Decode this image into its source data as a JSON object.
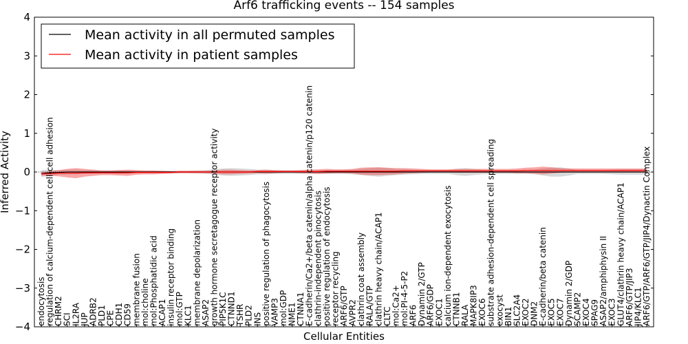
{
  "chart_data": {
    "type": "line",
    "title": "Arf6 trafficking events -- 154 samples",
    "xlabel": "Cellular Entities",
    "ylabel": "Inferred Activity",
    "ylim": [
      -4,
      4
    ],
    "yticks": [
      "4",
      "3",
      "2",
      "1",
      "0",
      "−1",
      "−2",
      "−3",
      "−4"
    ],
    "ytick_values": [
      4,
      3,
      2,
      1,
      0,
      -1,
      -2,
      -3,
      -4
    ],
    "legend_position": "top-left",
    "categories": [
      "endocytosis",
      "regulation of calcium-dependent cell-cell adhesion",
      "CHRM2",
      "SCI",
      "IL2RA",
      "JUP",
      "ADRB2",
      "PLD1",
      "CPE",
      "CDH1",
      "CD59",
      "membrane fusion",
      "mol:choline",
      "mol:Phosphatidic acid",
      "ACAP1",
      "insulin receptor binding",
      "mol:GTP",
      "KLC1",
      "membrane depolarization",
      "ASAP2",
      "growth hormone secretagogue receptor activity",
      "PIP5K1C",
      "CTNND1",
      "TSHR",
      "PLD2",
      "INS",
      "positive regulation of phagocytosis",
      "VAMP3",
      "mol:GDP",
      "NME1",
      "CTNNA1",
      "E-cadherin/Ca2+/beta catenin/alpha catenin/p120 catenin",
      "clathrin-independent pinocytosis",
      "positive regulation of endocytosis",
      "receptor recycling",
      "ARF6/GTP",
      "AVPR2",
      "clathrin coat assembly",
      "RALA/GTP",
      "clathrin heavy chain/ACAP1",
      "CLTC",
      "mol:Ca2+",
      "mol:PI-4-5-P2",
      "ARF6",
      "Dynamin 2/GTP",
      "ARF6/GDP",
      "EXOC1",
      "calcium ion-dependent exocytosis",
      "CTNNB1",
      "RALA",
      "MAPK8IP3",
      "EXOC6",
      "substrate adhesion-dependent cell spreading",
      "exocyst",
      "BIN1",
      "SLC2A4",
      "EXOC2",
      "DNM2",
      "E-cadherin/beta catenin",
      "EXOC5",
      "EXOC7",
      "Dynamin 2/GDP",
      "SCAMP2",
      "EXOC4",
      "SPAG9",
      "ASAP2/amphiphysin II",
      "EXOC3",
      "GLUT4/clathrin heavy chain/ACAP1",
      "ARF6/GTP/JIP3",
      "JIP4/KLC1",
      "ARF6/GTP/ARF6/GTP/JIP4/Dynactin Complex"
    ],
    "series": [
      {
        "name": "Mean activity in all permuted samples",
        "color": "#000000",
        "values": [
          -0.04,
          -0.02,
          -0.01,
          0,
          0,
          0,
          0,
          0,
          0,
          0,
          0,
          0,
          0,
          0,
          0,
          0,
          0,
          0,
          0,
          0,
          0,
          0,
          0,
          0,
          0,
          0,
          0,
          0,
          0,
          0,
          0,
          0,
          0,
          0,
          0,
          0,
          0,
          0,
          0,
          0,
          0,
          0,
          0,
          0,
          0,
          0,
          0,
          0,
          0,
          0,
          0,
          0,
          0,
          0,
          0,
          0,
          0,
          0,
          0,
          0,
          0,
          0,
          0,
          0,
          0,
          0,
          0,
          0,
          0,
          0,
          0
        ],
        "band": [
          0.09,
          0.08,
          0.06,
          0.06,
          0.06,
          0.05,
          0.05,
          0.04,
          0.04,
          0.05,
          0.04,
          0.03,
          0.03,
          0.03,
          0.03,
          0.03,
          0.03,
          0.03,
          0.04,
          0.05,
          0.07,
          0.09,
          0.1,
          0.09,
          0.08,
          0.06,
          0.06,
          0.05,
          0.05,
          0.05,
          0.05,
          0.05,
          0.05,
          0.05,
          0.05,
          0.05,
          0.06,
          0.08,
          0.1,
          0.12,
          0.1,
          0.08,
          0.07,
          0.06,
          0.05,
          0.05,
          0.05,
          0.05,
          0.08,
          0.1,
          0.08,
          0.06,
          0.05,
          0.05,
          0.05,
          0.05,
          0.05,
          0.06,
          0.09,
          0.12,
          0.12,
          0.09,
          0.05,
          0.05,
          0.05,
          0.05,
          0.06,
          0.07,
          0.07,
          0.07,
          0.07
        ]
      },
      {
        "name": "Mean activity in patient samples",
        "color": "#ff0000",
        "values": [
          -0.05,
          -0.04,
          -0.03,
          -0.03,
          -0.03,
          -0.02,
          -0.02,
          -0.02,
          -0.02,
          -0.02,
          -0.02,
          -0.01,
          -0.01,
          -0.01,
          -0.01,
          -0.01,
          0,
          0,
          0,
          0,
          0,
          0,
          0,
          0,
          0,
          0.01,
          0.01,
          0.01,
          0.01,
          0.01,
          0.01,
          0.01,
          0.01,
          0.02,
          0.02,
          0.02,
          0.02,
          0.02,
          0.02,
          0.02,
          0.02,
          0.02,
          0.03,
          0.03,
          0.03,
          0.03,
          0.03,
          0.03,
          0.03,
          0.03,
          0.03,
          0.03,
          0.03,
          0.03,
          0.03,
          0.03,
          0.04,
          0.04,
          0.04,
          0.04,
          0.04,
          0.04,
          0.04,
          0.04,
          0.04,
          0.04,
          0.04,
          0.04,
          0.04,
          0.04,
          0.04
        ],
        "band": [
          0.04,
          0.06,
          0.08,
          0.11,
          0.13,
          0.1,
          0.08,
          0.06,
          0.06,
          0.07,
          0.08,
          0.06,
          0.05,
          0.05,
          0.04,
          0.03,
          0.03,
          0.03,
          0.03,
          0.03,
          0.04,
          0.06,
          0.06,
          0.05,
          0.04,
          0.04,
          0.05,
          0.04,
          0.03,
          0.03,
          0.04,
          0.05,
          0.06,
          0.06,
          0.05,
          0.05,
          0.06,
          0.09,
          0.1,
          0.1,
          0.09,
          0.08,
          0.07,
          0.06,
          0.05,
          0.04,
          0.04,
          0.04,
          0.05,
          0.05,
          0.05,
          0.05,
          0.05,
          0.05,
          0.05,
          0.06,
          0.07,
          0.08,
          0.1,
          0.08,
          0.06,
          0.05,
          0.05,
          0.05,
          0.05,
          0.05,
          0.05,
          0.05,
          0.05,
          0.05,
          0.05
        ]
      }
    ]
  }
}
